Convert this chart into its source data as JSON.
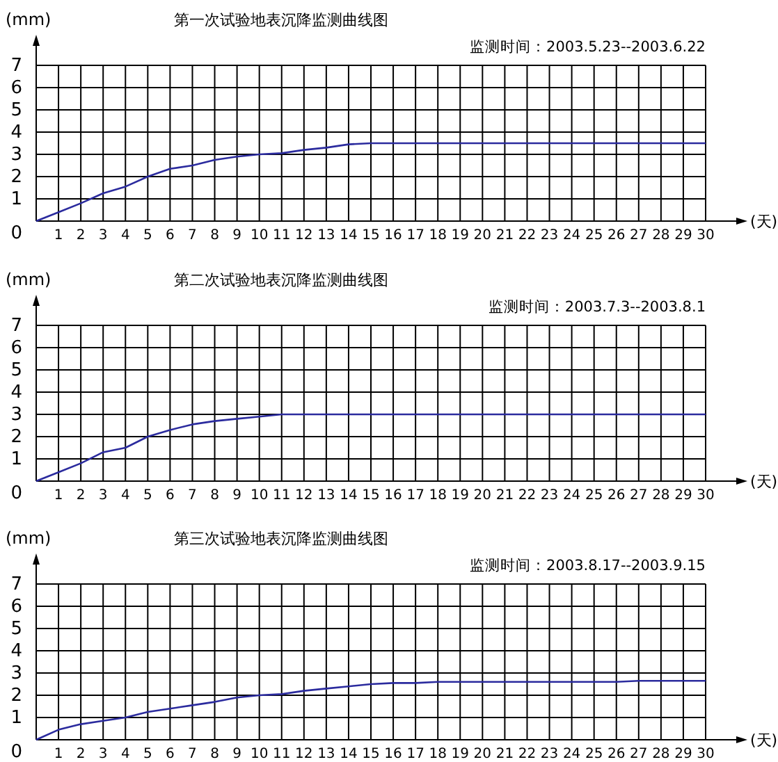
{
  "chart_data": [
    {
      "type": "line",
      "title": "第一次试验地表沉降监测曲线图",
      "subtitle": "监测时间：2003.5.23--2003.6.22",
      "xlabel": "(天)",
      "ylabel": "(mm)",
      "x": [
        0,
        1,
        2,
        3,
        4,
        5,
        6,
        7,
        8,
        9,
        10,
        11,
        12,
        13,
        14,
        15,
        16,
        17,
        18,
        19,
        20,
        21,
        22,
        23,
        24,
        25,
        26,
        27,
        28,
        29,
        30
      ],
      "series": [
        {
          "color": "#2b2b9e",
          "values": [
            0,
            0.4,
            0.8,
            1.25,
            1.55,
            2.0,
            2.35,
            2.5,
            2.75,
            2.9,
            3.0,
            3.05,
            3.2,
            3.3,
            3.45,
            3.5,
            3.5,
            3.5,
            3.5,
            3.5,
            3.5,
            3.5,
            3.5,
            3.5,
            3.5,
            3.5,
            3.5,
            3.5,
            3.5,
            3.5,
            3.5
          ]
        }
      ],
      "xlim": [
        0,
        30
      ],
      "xticks": [
        1,
        2,
        3,
        4,
        5,
        6,
        7,
        8,
        9,
        10,
        11,
        12,
        13,
        14,
        15,
        16,
        17,
        18,
        19,
        20,
        21,
        22,
        23,
        24,
        25,
        26,
        27,
        28,
        29,
        30
      ],
      "ylim": [
        0,
        7
      ],
      "yticks": [
        0,
        1,
        2,
        3,
        4,
        5,
        6,
        7
      ],
      "grid": true,
      "marker": "none",
      "line_style": "solid"
    },
    {
      "type": "line",
      "title": "第二次试验地表沉降监测曲线图",
      "subtitle": "监测时间：2003.7.3--2003.8.1",
      "xlabel": "(天)",
      "ylabel": "(mm)",
      "x": [
        0,
        1,
        2,
        3,
        4,
        5,
        6,
        7,
        8,
        9,
        10,
        11,
        12,
        13,
        14,
        15,
        16,
        17,
        18,
        19,
        20,
        21,
        22,
        23,
        24,
        25,
        26,
        27,
        28,
        29,
        30
      ],
      "series": [
        {
          "color": "#2b2b9e",
          "values": [
            0,
            0.4,
            0.8,
            1.3,
            1.5,
            2.0,
            2.3,
            2.55,
            2.7,
            2.8,
            2.9,
            3.0,
            3.0,
            3.0,
            3.0,
            3.0,
            3.0,
            3.0,
            3.0,
            3.0,
            3.0,
            3.0,
            3.0,
            3.0,
            3.0,
            3.0,
            3.0,
            3.0,
            3.0,
            3.0,
            3.0
          ]
        }
      ],
      "xlim": [
        0,
        30
      ],
      "xticks": [
        1,
        2,
        3,
        4,
        5,
        6,
        7,
        8,
        9,
        10,
        11,
        12,
        13,
        14,
        15,
        16,
        17,
        18,
        19,
        20,
        21,
        22,
        23,
        24,
        25,
        26,
        27,
        28,
        29,
        30
      ],
      "ylim": [
        0,
        7
      ],
      "yticks": [
        0,
        1,
        2,
        3,
        4,
        5,
        6,
        7
      ],
      "grid": true,
      "marker": "none",
      "line_style": "solid"
    },
    {
      "type": "line",
      "title": "第三次试验地表沉降监测曲线图",
      "subtitle": "监测时间：2003.8.17--2003.9.15",
      "xlabel": "(天)",
      "ylabel": "(mm)",
      "x": [
        0,
        1,
        2,
        3,
        4,
        5,
        6,
        7,
        8,
        9,
        10,
        11,
        12,
        13,
        14,
        15,
        16,
        17,
        18,
        19,
        20,
        21,
        22,
        23,
        24,
        25,
        26,
        27,
        28,
        29,
        30
      ],
      "series": [
        {
          "color": "#2b2b9e",
          "values": [
            0,
            0.45,
            0.7,
            0.85,
            1.0,
            1.25,
            1.4,
            1.55,
            1.7,
            1.9,
            2.0,
            2.05,
            2.2,
            2.3,
            2.4,
            2.5,
            2.55,
            2.55,
            2.6,
            2.6,
            2.6,
            2.6,
            2.6,
            2.6,
            2.6,
            2.6,
            2.6,
            2.65,
            2.65,
            2.65,
            2.65
          ]
        }
      ],
      "xlim": [
        0,
        30
      ],
      "xticks": [
        1,
        2,
        3,
        4,
        5,
        6,
        7,
        8,
        9,
        10,
        11,
        12,
        13,
        14,
        15,
        16,
        17,
        18,
        19,
        20,
        21,
        22,
        23,
        24,
        25,
        26,
        27,
        28,
        29,
        30
      ],
      "ylim": [
        0,
        7
      ],
      "yticks": [
        0,
        1,
        2,
        3,
        4,
        5,
        6,
        7
      ],
      "grid": true,
      "marker": "none",
      "line_style": "solid"
    }
  ]
}
